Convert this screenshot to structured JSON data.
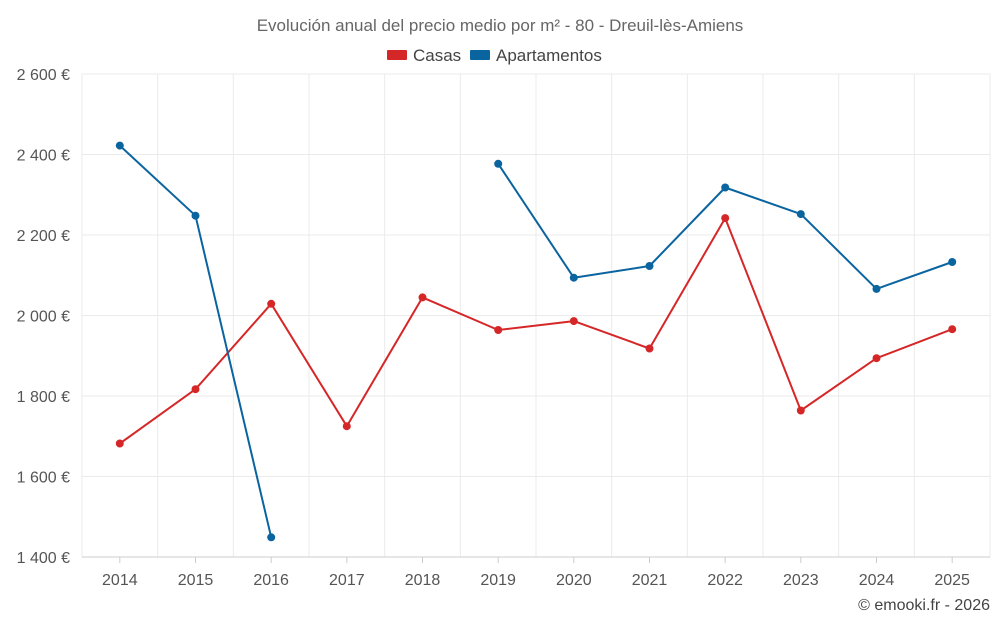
{
  "chart_data": {
    "type": "line",
    "title": "Evolución anual del precio medio por m² - 80 - Dreuil-lès-Amiens",
    "categories": [
      "2014",
      "2015",
      "2016",
      "2017",
      "2018",
      "2019",
      "2020",
      "2021",
      "2022",
      "2023",
      "2024",
      "2025"
    ],
    "y_tick_labels": [
      "1 400 €",
      "1 600 €",
      "1 800 €",
      "2 000 €",
      "2 200 €",
      "2 400 €",
      "2 600 €"
    ],
    "y_ticks": [
      1400,
      1600,
      1800,
      2000,
      2200,
      2400,
      2600
    ],
    "ylim": [
      1400,
      2600
    ],
    "grid": true,
    "legend_position": "top-center",
    "series": [
      {
        "name": "Casas",
        "color": "#d62728",
        "values": [
          1682,
          1817,
          2029,
          1725,
          2045,
          1964,
          1986,
          1918,
          2242,
          1764,
          1894,
          1966
        ]
      },
      {
        "name": "Apartamentos",
        "color": "#0a64a0",
        "values": [
          2422,
          2248,
          1449,
          null,
          null,
          2377,
          2094,
          2123,
          2318,
          2252,
          2066,
          2133
        ]
      }
    ],
    "credit": "© emooki.fr - 2026"
  }
}
